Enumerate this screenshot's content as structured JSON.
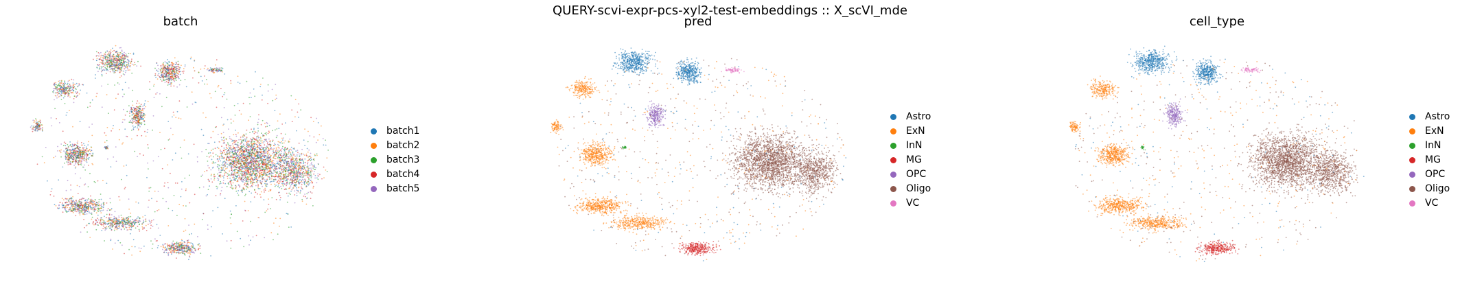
{
  "suptitle": "QUERY-scvi-expr-pcs-xyl2-test-embeddings :: X_scVI_mde",
  "chart_data": [
    {
      "type": "scatter",
      "title": "batch",
      "xlabel": "",
      "ylabel": "",
      "grid": false,
      "axes_visible": false,
      "legend_position": "right",
      "categories": [
        "batch1",
        "batch2",
        "batch3",
        "batch4",
        "batch5"
      ],
      "colors": [
        "#1f77b4",
        "#ff7f0e",
        "#2ca02c",
        "#d62728",
        "#9467bd"
      ]
    },
    {
      "type": "scatter",
      "title": "pred",
      "xlabel": "",
      "ylabel": "",
      "grid": false,
      "axes_visible": false,
      "legend_position": "right",
      "categories": [
        "Astro",
        "ExN",
        "InN",
        "MG",
        "OPC",
        "Oligo",
        "VC"
      ],
      "colors": [
        "#1f77b4",
        "#ff7f0e",
        "#2ca02c",
        "#d62728",
        "#9467bd",
        "#8c564b",
        "#e377c2"
      ]
    },
    {
      "type": "scatter",
      "title": "cell_type",
      "xlabel": "",
      "ylabel": "",
      "grid": false,
      "axes_visible": false,
      "legend_position": "right",
      "categories": [
        "Astro",
        "ExN",
        "InN",
        "MG",
        "OPC",
        "Oligo",
        "VC"
      ],
      "colors": [
        "#1f77b4",
        "#ff7f0e",
        "#2ca02c",
        "#d62728",
        "#9467bd",
        "#8c564b",
        "#e377c2"
      ]
    }
  ]
}
